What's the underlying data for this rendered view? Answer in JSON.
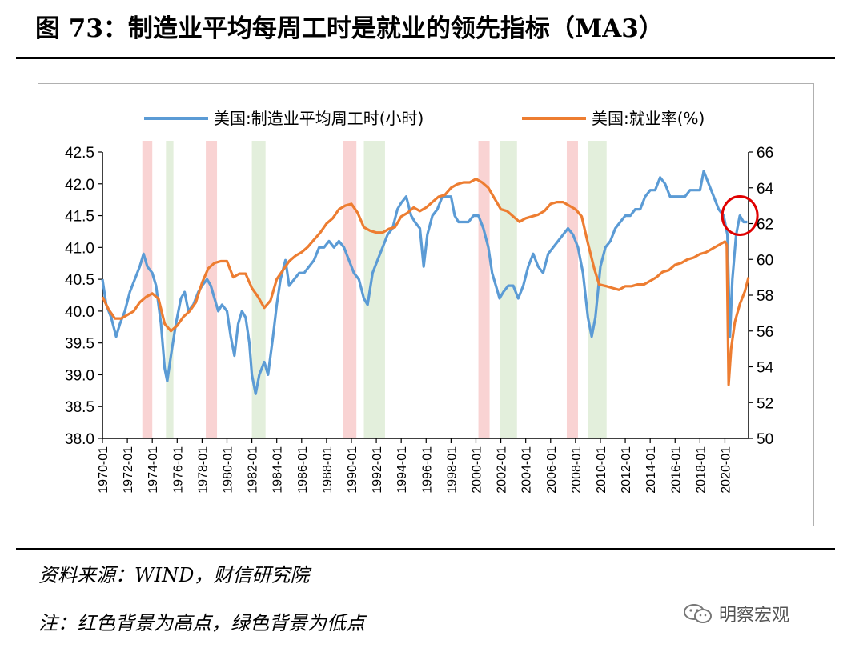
{
  "header": {
    "title": "图 73：制造业平均每周工时是就业的领先指标（MA3）"
  },
  "footer": {
    "source": "资料来源：WIND，财信研究院",
    "note": "注：红色背景为高点，绿色背景为低点"
  },
  "watermark": {
    "text": "明察宏观",
    "icon": "wechat-icon"
  },
  "colors": {
    "hours_line": "#5B9BD5",
    "employment_line": "#ED7D31",
    "peak_band": "#F9D3D3",
    "trough_band": "#E3EFDC",
    "highlight_circle": "#E00000"
  },
  "chart_data": {
    "type": "line",
    "x_ticks": [
      "1970-01",
      "1972-01",
      "1974-01",
      "1976-01",
      "1978-01",
      "1980-01",
      "1982-01",
      "1984-01",
      "1986-01",
      "1988-01",
      "1990-01",
      "1992-01",
      "1994-01",
      "1996-01",
      "1998-01",
      "2000-01",
      "2002-01",
      "2004-01",
      "2006-01",
      "2008-01",
      "2010-01",
      "2012-01",
      "2014-01",
      "2016-01",
      "2018-01",
      "2020-01"
    ],
    "x_range": [
      1970.0,
      2021.9
    ],
    "y_left": {
      "range": [
        38.0,
        42.5
      ],
      "ticks": [
        "38.0",
        "38.5",
        "39.0",
        "39.5",
        "40.0",
        "40.5",
        "41.0",
        "41.5",
        "42.0",
        "42.5"
      ]
    },
    "y_right": {
      "range": [
        50,
        66
      ],
      "ticks": [
        "50",
        "52",
        "54",
        "56",
        "58",
        "60",
        "62",
        "64",
        "66"
      ]
    },
    "legend": {
      "placement": "top"
    },
    "grid": false,
    "peak_bands": [
      [
        1973.2,
        1974.0
      ],
      [
        1978.3,
        1979.2
      ],
      [
        1989.3,
        1990.4
      ],
      [
        2000.2,
        2001.1
      ],
      [
        2007.3,
        2008.2
      ]
    ],
    "trough_bands": [
      [
        1975.1,
        1975.7
      ],
      [
        1982.0,
        1983.1
      ],
      [
        1991.0,
        1992.7
      ],
      [
        2001.9,
        2003.3
      ],
      [
        2009.0,
        2010.5
      ]
    ],
    "highlight": {
      "x": 2021.2,
      "axis": "left",
      "y": 41.5
    },
    "series": [
      {
        "name": "美国:制造业平均周工时(小时)",
        "axis": "left",
        "points": [
          [
            1970.0,
            40.5
          ],
          [
            1970.3,
            40.1
          ],
          [
            1970.7,
            39.9
          ],
          [
            1971.1,
            39.6
          ],
          [
            1971.4,
            39.8
          ],
          [
            1971.8,
            40.0
          ],
          [
            1972.2,
            40.3
          ],
          [
            1972.6,
            40.5
          ],
          [
            1973.0,
            40.7
          ],
          [
            1973.3,
            40.9
          ],
          [
            1973.6,
            40.7
          ],
          [
            1974.0,
            40.6
          ],
          [
            1974.3,
            40.4
          ],
          [
            1974.7,
            39.8
          ],
          [
            1975.0,
            39.1
          ],
          [
            1975.2,
            38.9
          ],
          [
            1975.5,
            39.3
          ],
          [
            1975.9,
            39.8
          ],
          [
            1976.3,
            40.2
          ],
          [
            1976.6,
            40.3
          ],
          [
            1976.9,
            40.0
          ],
          [
            1977.3,
            40.1
          ],
          [
            1977.7,
            40.3
          ],
          [
            1978.0,
            40.4
          ],
          [
            1978.4,
            40.5
          ],
          [
            1978.7,
            40.4
          ],
          [
            1979.0,
            40.2
          ],
          [
            1979.3,
            40.0
          ],
          [
            1979.6,
            40.1
          ],
          [
            1980.0,
            40.0
          ],
          [
            1980.3,
            39.6
          ],
          [
            1980.6,
            39.3
          ],
          [
            1980.9,
            39.8
          ],
          [
            1981.2,
            40.0
          ],
          [
            1981.5,
            39.9
          ],
          [
            1981.8,
            39.5
          ],
          [
            1982.0,
            39.0
          ],
          [
            1982.3,
            38.7
          ],
          [
            1982.6,
            39.0
          ],
          [
            1983.0,
            39.2
          ],
          [
            1983.3,
            39.0
          ],
          [
            1983.7,
            39.6
          ],
          [
            1984.0,
            40.1
          ],
          [
            1984.3,
            40.5
          ],
          [
            1984.7,
            40.8
          ],
          [
            1985.0,
            40.4
          ],
          [
            1985.4,
            40.5
          ],
          [
            1985.8,
            40.6
          ],
          [
            1986.2,
            40.6
          ],
          [
            1986.6,
            40.7
          ],
          [
            1987.0,
            40.8
          ],
          [
            1987.4,
            41.0
          ],
          [
            1987.8,
            41.0
          ],
          [
            1988.2,
            41.1
          ],
          [
            1988.6,
            41.0
          ],
          [
            1989.0,
            41.1
          ],
          [
            1989.4,
            41.0
          ],
          [
            1989.8,
            40.8
          ],
          [
            1990.2,
            40.6
          ],
          [
            1990.6,
            40.5
          ],
          [
            1991.0,
            40.2
          ],
          [
            1991.3,
            40.1
          ],
          [
            1991.7,
            40.6
          ],
          [
            1992.1,
            40.8
          ],
          [
            1992.5,
            41.0
          ],
          [
            1992.9,
            41.2
          ],
          [
            1993.3,
            41.3
          ],
          [
            1993.7,
            41.6
          ],
          [
            1994.0,
            41.7
          ],
          [
            1994.4,
            41.8
          ],
          [
            1994.8,
            41.5
          ],
          [
            1995.1,
            41.4
          ],
          [
            1995.5,
            41.3
          ],
          [
            1995.8,
            40.7
          ],
          [
            1996.1,
            41.2
          ],
          [
            1996.5,
            41.5
          ],
          [
            1996.9,
            41.6
          ],
          [
            1997.3,
            41.8
          ],
          [
            1997.7,
            41.8
          ],
          [
            1998.0,
            41.8
          ],
          [
            1998.3,
            41.5
          ],
          [
            1998.6,
            41.4
          ],
          [
            1999.0,
            41.4
          ],
          [
            1999.4,
            41.4
          ],
          [
            1999.8,
            41.5
          ],
          [
            2000.2,
            41.5
          ],
          [
            2000.6,
            41.3
          ],
          [
            2001.0,
            41.0
          ],
          [
            2001.3,
            40.6
          ],
          [
            2001.6,
            40.4
          ],
          [
            2001.9,
            40.2
          ],
          [
            2002.2,
            40.3
          ],
          [
            2002.6,
            40.4
          ],
          [
            2003.0,
            40.4
          ],
          [
            2003.4,
            40.2
          ],
          [
            2003.8,
            40.4
          ],
          [
            2004.2,
            40.7
          ],
          [
            2004.6,
            40.9
          ],
          [
            2005.0,
            40.7
          ],
          [
            2005.4,
            40.6
          ],
          [
            2005.8,
            40.9
          ],
          [
            2006.2,
            41.0
          ],
          [
            2006.6,
            41.1
          ],
          [
            2007.0,
            41.2
          ],
          [
            2007.4,
            41.3
          ],
          [
            2007.8,
            41.2
          ],
          [
            2008.2,
            41.0
          ],
          [
            2008.6,
            40.6
          ],
          [
            2009.0,
            39.9
          ],
          [
            2009.3,
            39.6
          ],
          [
            2009.6,
            39.9
          ],
          [
            2010.0,
            40.7
          ],
          [
            2010.4,
            41.0
          ],
          [
            2010.8,
            41.1
          ],
          [
            2011.2,
            41.3
          ],
          [
            2011.6,
            41.4
          ],
          [
            2012.0,
            41.5
          ],
          [
            2012.4,
            41.5
          ],
          [
            2012.8,
            41.6
          ],
          [
            2013.2,
            41.6
          ],
          [
            2013.6,
            41.8
          ],
          [
            2014.0,
            41.9
          ],
          [
            2014.4,
            41.9
          ],
          [
            2014.8,
            42.1
          ],
          [
            2015.2,
            42.0
          ],
          [
            2015.6,
            41.8
          ],
          [
            2016.0,
            41.8
          ],
          [
            2016.4,
            41.8
          ],
          [
            2016.8,
            41.8
          ],
          [
            2017.2,
            41.9
          ],
          [
            2017.6,
            41.9
          ],
          [
            2018.0,
            41.9
          ],
          [
            2018.3,
            42.2
          ],
          [
            2018.7,
            42.0
          ],
          [
            2019.1,
            41.8
          ],
          [
            2019.5,
            41.6
          ],
          [
            2019.9,
            41.5
          ],
          [
            2020.2,
            41.2
          ],
          [
            2020.4,
            39.6
          ],
          [
            2020.6,
            40.5
          ],
          [
            2020.9,
            41.2
          ],
          [
            2021.2,
            41.5
          ],
          [
            2021.5,
            41.4
          ],
          [
            2021.8,
            41.4
          ]
        ]
      },
      {
        "name": "美国:就业率(%)",
        "axis": "right",
        "points": [
          [
            1970.0,
            57.9
          ],
          [
            1970.5,
            57.2
          ],
          [
            1971.0,
            56.7
          ],
          [
            1971.5,
            56.7
          ],
          [
            1972.0,
            56.9
          ],
          [
            1972.5,
            57.1
          ],
          [
            1973.0,
            57.6
          ],
          [
            1973.5,
            57.9
          ],
          [
            1974.0,
            58.1
          ],
          [
            1974.5,
            57.8
          ],
          [
            1975.0,
            56.4
          ],
          [
            1975.5,
            56.0
          ],
          [
            1976.0,
            56.3
          ],
          [
            1976.5,
            56.8
          ],
          [
            1977.0,
            57.1
          ],
          [
            1977.5,
            57.6
          ],
          [
            1978.0,
            58.7
          ],
          [
            1978.5,
            59.5
          ],
          [
            1979.0,
            59.8
          ],
          [
            1979.5,
            59.9
          ],
          [
            1980.0,
            59.9
          ],
          [
            1980.5,
            59.0
          ],
          [
            1981.0,
            59.2
          ],
          [
            1981.5,
            59.2
          ],
          [
            1982.0,
            58.4
          ],
          [
            1982.5,
            57.9
          ],
          [
            1983.0,
            57.3
          ],
          [
            1983.5,
            57.7
          ],
          [
            1984.0,
            58.9
          ],
          [
            1984.5,
            59.4
          ],
          [
            1985.0,
            59.9
          ],
          [
            1985.5,
            60.2
          ],
          [
            1986.0,
            60.4
          ],
          [
            1986.5,
            60.7
          ],
          [
            1987.0,
            61.1
          ],
          [
            1987.5,
            61.5
          ],
          [
            1988.0,
            62.0
          ],
          [
            1988.5,
            62.3
          ],
          [
            1989.0,
            62.8
          ],
          [
            1989.5,
            63.0
          ],
          [
            1990.0,
            63.1
          ],
          [
            1990.5,
            62.6
          ],
          [
            1991.0,
            61.8
          ],
          [
            1991.5,
            61.6
          ],
          [
            1992.0,
            61.5
          ],
          [
            1992.5,
            61.5
          ],
          [
            1993.0,
            61.7
          ],
          [
            1993.5,
            61.8
          ],
          [
            1994.0,
            62.4
          ],
          [
            1994.5,
            62.6
          ],
          [
            1995.0,
            62.9
          ],
          [
            1995.5,
            62.7
          ],
          [
            1996.0,
            62.9
          ],
          [
            1996.5,
            63.2
          ],
          [
            1997.0,
            63.5
          ],
          [
            1997.5,
            63.6
          ],
          [
            1998.0,
            64.0
          ],
          [
            1998.5,
            64.2
          ],
          [
            1999.0,
            64.3
          ],
          [
            1999.5,
            64.3
          ],
          [
            2000.0,
            64.5
          ],
          [
            2000.5,
            64.3
          ],
          [
            2001.0,
            64.0
          ],
          [
            2001.5,
            63.4
          ],
          [
            2002.0,
            62.8
          ],
          [
            2002.5,
            62.7
          ],
          [
            2003.0,
            62.4
          ],
          [
            2003.5,
            62.1
          ],
          [
            2004.0,
            62.3
          ],
          [
            2004.5,
            62.4
          ],
          [
            2005.0,
            62.5
          ],
          [
            2005.5,
            62.7
          ],
          [
            2006.0,
            63.1
          ],
          [
            2006.5,
            63.2
          ],
          [
            2007.0,
            63.2
          ],
          [
            2007.5,
            63.0
          ],
          [
            2008.0,
            62.8
          ],
          [
            2008.5,
            62.4
          ],
          [
            2009.0,
            60.9
          ],
          [
            2009.5,
            59.5
          ],
          [
            2009.9,
            58.6
          ],
          [
            2010.5,
            58.5
          ],
          [
            2011.0,
            58.4
          ],
          [
            2011.5,
            58.3
          ],
          [
            2012.0,
            58.5
          ],
          [
            2012.5,
            58.5
          ],
          [
            2013.0,
            58.6
          ],
          [
            2013.5,
            58.6
          ],
          [
            2014.0,
            58.8
          ],
          [
            2014.5,
            59.0
          ],
          [
            2015.0,
            59.3
          ],
          [
            2015.5,
            59.4
          ],
          [
            2016.0,
            59.7
          ],
          [
            2016.5,
            59.8
          ],
          [
            2017.0,
            60.0
          ],
          [
            2017.5,
            60.1
          ],
          [
            2018.0,
            60.3
          ],
          [
            2018.5,
            60.4
          ],
          [
            2019.0,
            60.6
          ],
          [
            2019.5,
            60.8
          ],
          [
            2020.0,
            61.0
          ],
          [
            2020.15,
            60.8
          ],
          [
            2020.3,
            53.0
          ],
          [
            2020.5,
            55.0
          ],
          [
            2020.8,
            56.5
          ],
          [
            2021.2,
            57.5
          ],
          [
            2021.6,
            58.2
          ],
          [
            2021.9,
            59.0
          ]
        ]
      }
    ]
  }
}
